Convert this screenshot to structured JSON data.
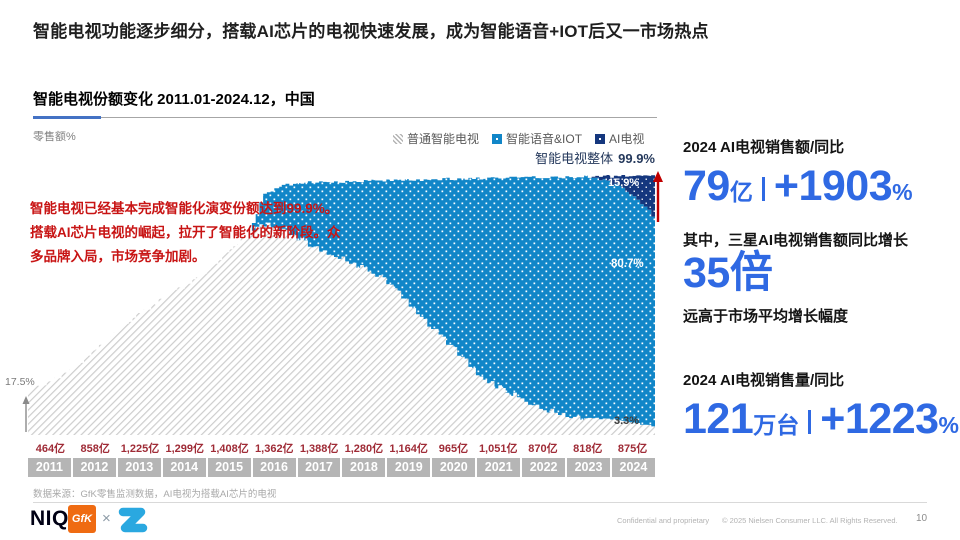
{
  "header": {
    "title": "智能电视功能逐步细分，搭载AI芯片的电视快速发展，成为智能语音+IOT后又一市场热点"
  },
  "chart_header": {
    "title": "智能电视份额变化 2011.01-2024.12，中国",
    "unit_label": "零售额%"
  },
  "legend": {
    "items": [
      {
        "label": "普通智能电视",
        "swatch": "hatch"
      },
      {
        "label": "智能语音&IOT",
        "swatch": "#1186c8"
      },
      {
        "label": "AI电视",
        "swatch": "#15377e"
      }
    ],
    "total_label": "智能电视整体",
    "total_value": "99.9%"
  },
  "annotation": {
    "lines": [
      "智能电视已经基本完成智能化演变份额达到99.9%。",
      "搭载AI芯片电视的崛起，拉开了智能化的新阶段。众",
      "多品牌入局，市场竞争加剧。"
    ],
    "color": "#c81414"
  },
  "colors": {
    "voice_blue": "#1186c8",
    "ai_navy": "#15377e",
    "hatch_line": "#cdcdcd",
    "accent_blue": "#2f69e3",
    "arrow_red": "#c00000",
    "revenue_red": "#9f2b36",
    "year_box_gray": "#b5b5b5"
  },
  "chart_data": {
    "type": "area",
    "title": "智能电视份额变化 2011.01-2024.12，中国",
    "ylabel": "零售额%",
    "ylim": [
      0,
      100
    ],
    "x_range_months": 168,
    "x_range": [
      "2011.01",
      "2024.12"
    ],
    "series_names": [
      "普通智能电视",
      "智能语音&IOT",
      "AI电视"
    ],
    "total_share_anchors": [
      [
        0,
        17.5
      ],
      [
        6,
        21
      ],
      [
        12,
        26
      ],
      [
        18,
        33
      ],
      [
        24,
        41
      ],
      [
        30,
        47
      ],
      [
        36,
        53
      ],
      [
        42,
        58
      ],
      [
        48,
        64
      ],
      [
        54,
        71
      ],
      [
        59,
        78
      ],
      [
        63,
        93
      ],
      [
        68,
        96
      ],
      [
        72,
        97
      ],
      [
        84,
        97.5
      ],
      [
        96,
        98
      ],
      [
        108,
        98.3
      ],
      [
        120,
        98.6
      ],
      [
        132,
        99
      ],
      [
        144,
        99.2
      ],
      [
        156,
        99.5
      ],
      [
        168,
        99.9
      ]
    ],
    "ordinary_share_anchors": [
      [
        0,
        17.5
      ],
      [
        59,
        78
      ],
      [
        63,
        81
      ],
      [
        68,
        79
      ],
      [
        72,
        76
      ],
      [
        78,
        71
      ],
      [
        84,
        68
      ],
      [
        90,
        64
      ],
      [
        96,
        59
      ],
      [
        102,
        50
      ],
      [
        108,
        41
      ],
      [
        114,
        33
      ],
      [
        120,
        24
      ],
      [
        126,
        18
      ],
      [
        132,
        14
      ],
      [
        138,
        10
      ],
      [
        144,
        7.5
      ],
      [
        150,
        6.5
      ],
      [
        156,
        6
      ],
      [
        162,
        4.5
      ],
      [
        168,
        3.3
      ]
    ],
    "ai_share_anchors": [
      [
        0,
        0
      ],
      [
        150,
        0
      ],
      [
        154,
        1.5
      ],
      [
        158,
        4
      ],
      [
        162,
        8
      ],
      [
        165,
        12
      ],
      [
        168,
        15.9
      ]
    ],
    "end_labels": {
      "total": "99.9%",
      "ai": "15.9%",
      "voice_iot": "80.7%",
      "ordinary": "3.3%",
      "start_total": "17.5%"
    },
    "years": [
      "2011",
      "2012",
      "2013",
      "2014",
      "2015",
      "2016",
      "2017",
      "2018",
      "2019",
      "2020",
      "2021",
      "2022",
      "2023",
      "2024"
    ],
    "annual_revenue": [
      "464亿",
      "858亿",
      "1,225亿",
      "1,299亿",
      "1,408亿",
      "1,362亿",
      "1,388亿",
      "1,280亿",
      "1,164亿",
      "965亿",
      "1,051亿",
      "870亿",
      "818亿",
      "875亿"
    ]
  },
  "stats": {
    "sales": {
      "heading": "2024 AI电视销售额/同比",
      "value": "79",
      "unit": "亿",
      "value2": "+1903",
      "unit2": "%"
    },
    "samsung": {
      "heading": "其中，三星AI电视销售额同比增长",
      "value": "35倍",
      "note": "远高于市场平均增长幅度"
    },
    "volume": {
      "heading": "2024 AI电视销售量/同比",
      "value": "121",
      "unit": "万台",
      "value2": "+1223",
      "unit2": "%"
    }
  },
  "footer": {
    "source": "数据来源：GfK零售监测数据，AI电视为搭载AI芯片的电视",
    "niq": "NIQ",
    "gfk": "GfK",
    "cross": "×",
    "confidential": "Confidential and proprietary",
    "copyright": "© 2025 Nielsen Consumer LLC. All Rights Reserved.",
    "page_number": "10"
  }
}
